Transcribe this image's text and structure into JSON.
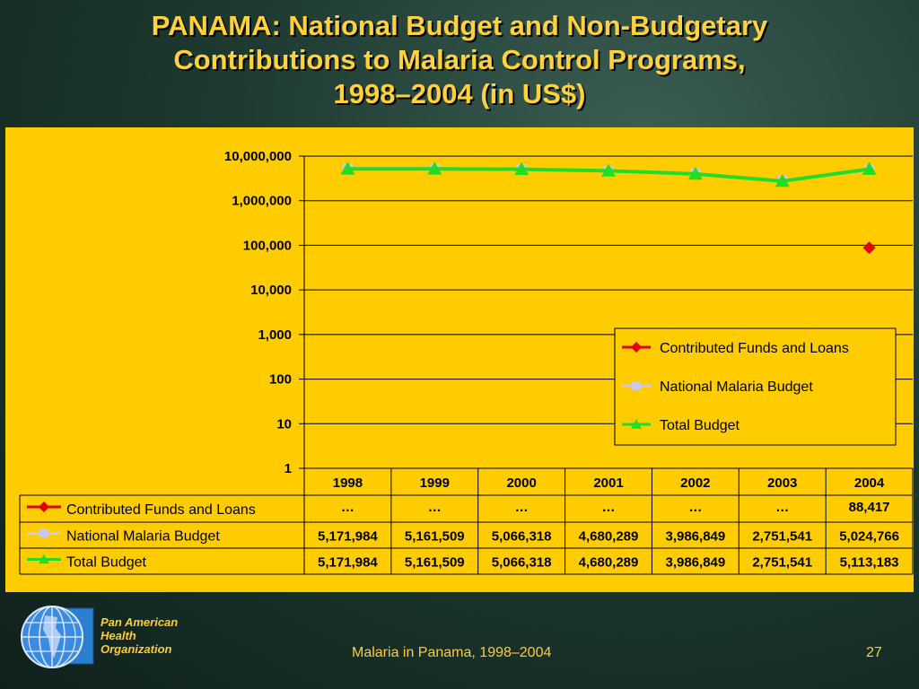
{
  "title": {
    "line1": "PANAMA: National Budget and Non-Budgetary",
    "line2": "Contributions to Malaria Control Programs,",
    "line3": "1998–2004 (in US$)"
  },
  "footer": {
    "org_line1": "Pan American",
    "org_line2": "Health",
    "org_line3": "Organization",
    "caption": "Malaria in Panama, 1998–2004",
    "page": "27"
  },
  "chart_data": {
    "type": "line",
    "yscale": "log",
    "ylim": [
      1,
      10000000
    ],
    "yticks": [
      "1",
      "10",
      "100",
      "1,000",
      "10,000",
      "100,000",
      "1,000,000",
      "10,000,000"
    ],
    "categories": [
      "1998",
      "1999",
      "2000",
      "2001",
      "2002",
      "2003",
      "2004"
    ],
    "legend_position": "right",
    "series": [
      {
        "name": "Contributed Funds and Loans",
        "color": "#e00000",
        "marker": "diamond",
        "values": [
          null,
          null,
          null,
          null,
          null,
          null,
          88417
        ],
        "table": [
          "…",
          "…",
          "…",
          "…",
          "…",
          "…",
          "88,417"
        ]
      },
      {
        "name": "National Malaria Budget",
        "color": "#c8c8f0",
        "marker": "square",
        "values": [
          5171984,
          5161509,
          5066318,
          4680289,
          3986849,
          2751541,
          5024766
        ],
        "table": [
          "5,171,984",
          "5,161,509",
          "5,066,318",
          "4,680,289",
          "3,986,849",
          "2,751,541",
          "5,024,766"
        ]
      },
      {
        "name": "Total Budget",
        "color": "#22dd22",
        "marker": "triangle",
        "values": [
          5171984,
          5161509,
          5066318,
          4680289,
          3986849,
          2751541,
          5113183
        ],
        "table": [
          "5,171,984",
          "5,161,509",
          "5,066,318",
          "4,680,289",
          "3,986,849",
          "2,751,541",
          "5,113,183"
        ]
      }
    ]
  }
}
